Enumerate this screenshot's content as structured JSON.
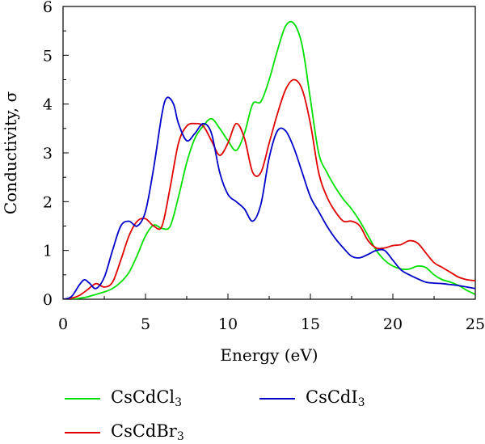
{
  "chart_data": {
    "type": "line",
    "xlabel": "Energy (eV)",
    "ylabel": "Conductivity, σ",
    "xlim": [
      0,
      25
    ],
    "ylim": [
      0,
      6
    ],
    "xticks": [
      "0",
      "5",
      "10",
      "15",
      "20",
      "25"
    ],
    "yticks": [
      "0",
      "1",
      "2",
      "3",
      "4",
      "5",
      "6"
    ],
    "grid": false,
    "legend_position": "bottom",
    "series": [
      {
        "name": "CsCdCl3",
        "name_parts": [
          "CsCdCl",
          "3"
        ],
        "color": "#00e000",
        "points": [
          [
            0,
            0
          ],
          [
            0.5,
            0
          ],
          [
            1,
            0.02
          ],
          [
            1.5,
            0.05
          ],
          [
            2,
            0.1
          ],
          [
            2.5,
            0.15
          ],
          [
            3,
            0.22
          ],
          [
            3.5,
            0.35
          ],
          [
            4,
            0.55
          ],
          [
            4.5,
            0.9
          ],
          [
            5,
            1.3
          ],
          [
            5.5,
            1.52
          ],
          [
            6,
            1.45
          ],
          [
            6.5,
            1.5
          ],
          [
            7,
            2.1
          ],
          [
            7.5,
            2.8
          ],
          [
            8,
            3.3
          ],
          [
            8.5,
            3.55
          ],
          [
            9,
            3.7
          ],
          [
            9.5,
            3.5
          ],
          [
            10,
            3.25
          ],
          [
            10.5,
            3.05
          ],
          [
            11,
            3.4
          ],
          [
            11.5,
            4.0
          ],
          [
            12,
            4.05
          ],
          [
            12.5,
            4.5
          ],
          [
            13,
            5.1
          ],
          [
            13.5,
            5.6
          ],
          [
            14,
            5.65
          ],
          [
            14.5,
            5.2
          ],
          [
            15,
            4.1
          ],
          [
            15.5,
            3.0
          ],
          [
            16,
            2.6
          ],
          [
            16.5,
            2.3
          ],
          [
            17,
            2.05
          ],
          [
            17.5,
            1.85
          ],
          [
            18,
            1.6
          ],
          [
            18.5,
            1.3
          ],
          [
            19,
            1.0
          ],
          [
            19.5,
            0.8
          ],
          [
            20,
            0.68
          ],
          [
            20.5,
            0.62
          ],
          [
            21,
            0.62
          ],
          [
            21.5,
            0.68
          ],
          [
            22,
            0.65
          ],
          [
            22.5,
            0.5
          ],
          [
            23,
            0.4
          ],
          [
            23.5,
            0.35
          ],
          [
            24,
            0.28
          ],
          [
            24.5,
            0.18
          ],
          [
            25,
            0.1
          ]
        ]
      },
      {
        "name": "CsCdBr3",
        "name_parts": [
          "CsCdBr",
          "3"
        ],
        "color": "#e00000",
        "points": [
          [
            0,
            0
          ],
          [
            0.5,
            0.02
          ],
          [
            1,
            0.08
          ],
          [
            1.5,
            0.2
          ],
          [
            2,
            0.32
          ],
          [
            2.5,
            0.25
          ],
          [
            3,
            0.35
          ],
          [
            3.5,
            0.8
          ],
          [
            4,
            1.3
          ],
          [
            4.5,
            1.6
          ],
          [
            5,
            1.65
          ],
          [
            5.5,
            1.5
          ],
          [
            6,
            1.5
          ],
          [
            6.5,
            2.3
          ],
          [
            7,
            3.2
          ],
          [
            7.5,
            3.55
          ],
          [
            8,
            3.6
          ],
          [
            8.5,
            3.55
          ],
          [
            9,
            3.25
          ],
          [
            9.5,
            2.95
          ],
          [
            10,
            3.2
          ],
          [
            10.5,
            3.6
          ],
          [
            11,
            3.3
          ],
          [
            11.5,
            2.6
          ],
          [
            12,
            2.6
          ],
          [
            12.5,
            3.2
          ],
          [
            13,
            3.8
          ],
          [
            13.5,
            4.3
          ],
          [
            14,
            4.5
          ],
          [
            14.5,
            4.3
          ],
          [
            15,
            3.6
          ],
          [
            15.5,
            2.6
          ],
          [
            16,
            2.1
          ],
          [
            16.5,
            1.8
          ],
          [
            17,
            1.6
          ],
          [
            17.5,
            1.6
          ],
          [
            18,
            1.5
          ],
          [
            18.5,
            1.2
          ],
          [
            19,
            1.05
          ],
          [
            19.5,
            1.05
          ],
          [
            20,
            1.1
          ],
          [
            20.5,
            1.12
          ],
          [
            21,
            1.2
          ],
          [
            21.5,
            1.15
          ],
          [
            22,
            0.95
          ],
          [
            22.5,
            0.75
          ],
          [
            23,
            0.65
          ],
          [
            23.5,
            0.55
          ],
          [
            24,
            0.45
          ],
          [
            24.5,
            0.4
          ],
          [
            25,
            0.38
          ]
        ]
      },
      {
        "name": "CsCdI3",
        "name_parts": [
          "CsCdI",
          "3"
        ],
        "color": "#0000c8",
        "points": [
          [
            0,
            0
          ],
          [
            0.5,
            0.05
          ],
          [
            1,
            0.3
          ],
          [
            1.3,
            0.4
          ],
          [
            1.6,
            0.33
          ],
          [
            2,
            0.22
          ],
          [
            2.5,
            0.45
          ],
          [
            3,
            1.0
          ],
          [
            3.5,
            1.5
          ],
          [
            4,
            1.6
          ],
          [
            4.5,
            1.5
          ],
          [
            5,
            1.8
          ],
          [
            5.5,
            2.7
          ],
          [
            6,
            3.8
          ],
          [
            6.3,
            4.13
          ],
          [
            6.7,
            4.0
          ],
          [
            7,
            3.6
          ],
          [
            7.5,
            3.25
          ],
          [
            8,
            3.4
          ],
          [
            8.5,
            3.6
          ],
          [
            9,
            3.4
          ],
          [
            9.5,
            2.6
          ],
          [
            10,
            2.15
          ],
          [
            10.5,
            2.0
          ],
          [
            11,
            1.85
          ],
          [
            11.5,
            1.6
          ],
          [
            12,
            1.95
          ],
          [
            12.5,
            2.9
          ],
          [
            13,
            3.45
          ],
          [
            13.5,
            3.45
          ],
          [
            14,
            3.1
          ],
          [
            14.5,
            2.6
          ],
          [
            15,
            2.1
          ],
          [
            15.5,
            1.8
          ],
          [
            16,
            1.5
          ],
          [
            16.5,
            1.25
          ],
          [
            17,
            1.05
          ],
          [
            17.5,
            0.88
          ],
          [
            18,
            0.85
          ],
          [
            18.5,
            0.92
          ],
          [
            19,
            1.0
          ],
          [
            19.5,
            1.0
          ],
          [
            20,
            0.8
          ],
          [
            20.5,
            0.6
          ],
          [
            21,
            0.5
          ],
          [
            21.5,
            0.42
          ],
          [
            22,
            0.35
          ],
          [
            22.5,
            0.33
          ],
          [
            23,
            0.32
          ],
          [
            23.5,
            0.3
          ],
          [
            24,
            0.28
          ],
          [
            24.5,
            0.25
          ],
          [
            25,
            0.22
          ]
        ]
      }
    ]
  }
}
